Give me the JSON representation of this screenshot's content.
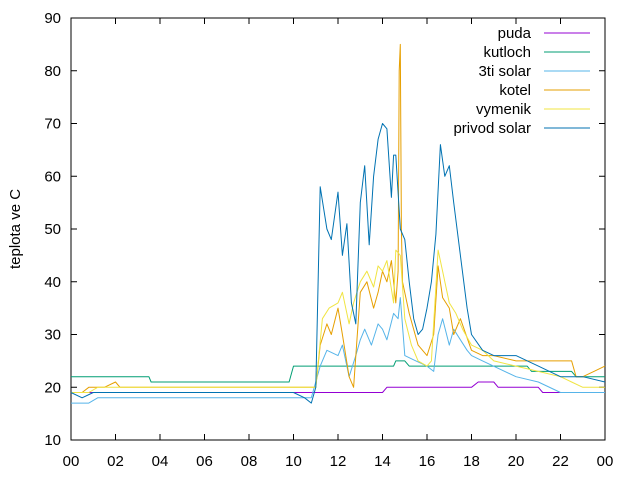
{
  "chart_data": {
    "type": "line",
    "title": "",
    "xlabel": "",
    "ylabel": "teplota ve C",
    "xlim": [
      0,
      24
    ],
    "ylim": [
      10,
      90
    ],
    "x_ticks": [
      "00",
      "02",
      "04",
      "06",
      "08",
      "10",
      "12",
      "14",
      "16",
      "18",
      "20",
      "22",
      "00"
    ],
    "y_ticks": [
      "10",
      "20",
      "30",
      "40",
      "50",
      "60",
      "70",
      "80",
      "90"
    ],
    "grid": false,
    "legend_position": "top-right",
    "series": [
      {
        "name": "puda",
        "color": "#9400d3",
        "x": [
          0,
          10.8,
          11,
          14,
          14.2,
          18,
          18.3,
          19,
          19.2,
          21,
          21.2,
          24
        ],
        "y": [
          19,
          19,
          19,
          19,
          20,
          20,
          21,
          21,
          20,
          20,
          19,
          19
        ]
      },
      {
        "name": "kutloch",
        "color": "#009e73",
        "x": [
          0,
          3.5,
          3.6,
          9.8,
          10,
          13,
          13.2,
          14.5,
          14.6,
          15,
          15.2,
          18.5,
          18.6,
          20.5,
          20.7,
          22.5,
          22.7,
          24
        ],
        "y": [
          22,
          22,
          21,
          21,
          24,
          24,
          24,
          24,
          25,
          25,
          24,
          24,
          24,
          24,
          23,
          23,
          22,
          22
        ]
      },
      {
        "name": "3ti solar",
        "color": "#56b4e9",
        "x": [
          0,
          0.8,
          1.2,
          4,
          4.2,
          9.5,
          10,
          10.8,
          11.2,
          11.5,
          12,
          12.2,
          12.5,
          12.8,
          13,
          13.2,
          13.5,
          13.8,
          14,
          14.2,
          14.5,
          14.7,
          14.8,
          15,
          15.5,
          16,
          16.3,
          16.5,
          16.7,
          17,
          17.2,
          17.5,
          17.8,
          18,
          18.5,
          20,
          21,
          22,
          22.5,
          23,
          24
        ],
        "y": [
          17,
          17,
          18,
          18,
          18,
          18,
          18,
          18,
          24,
          27,
          26,
          28,
          22,
          26,
          29,
          31,
          28,
          32,
          31,
          29,
          34,
          33,
          37,
          26,
          25,
          24,
          23,
          30,
          33,
          28,
          31,
          29,
          27,
          26,
          25,
          22,
          21,
          19,
          19,
          19,
          19
        ]
      },
      {
        "name": "kotel",
        "color": "#e69f00",
        "x": [
          0,
          0.5,
          0.8,
          1.5,
          2,
          2.2,
          3,
          3.2,
          9.5,
          10,
          10.5,
          11,
          11.2,
          11.5,
          11.7,
          12,
          12.2,
          12.5,
          12.7,
          13,
          13.3,
          13.6,
          13.8,
          14,
          14.2,
          14.4,
          14.6,
          14.7,
          14.75,
          14.8,
          14.85,
          14.9,
          15.2,
          15.6,
          16,
          16.3,
          16.5,
          16.7,
          17,
          17.2,
          17.5,
          18,
          18.5,
          19,
          20,
          21,
          22,
          22.5,
          22.7,
          23,
          23.5,
          24
        ],
        "y": [
          19,
          19,
          20,
          20,
          21,
          20,
          20,
          20,
          20,
          20,
          20,
          20,
          28,
          32,
          30,
          35,
          30,
          22,
          20,
          38,
          40,
          35,
          38,
          42,
          40,
          44,
          36,
          42,
          80,
          85,
          50,
          40,
          34,
          28,
          26,
          30,
          43,
          37,
          35,
          30,
          33,
          27,
          26,
          26,
          25,
          25,
          25,
          25,
          22,
          22,
          23,
          24
        ]
      },
      {
        "name": "vymenik",
        "color": "#f0e442",
        "x": [
          0,
          0.8,
          1.2,
          4,
          9.5,
          10.5,
          11,
          11.3,
          11.6,
          12,
          12.2,
          12.5,
          12.7,
          13,
          13.3,
          13.6,
          13.8,
          14,
          14.2,
          14.5,
          14.6,
          14.8,
          15,
          15.3,
          15.6,
          16,
          16.2,
          16.5,
          16.7,
          17,
          17.3,
          17.6,
          18,
          18.5,
          19,
          20,
          21,
          22,
          22.5,
          23,
          24
        ],
        "y": [
          19,
          19,
          20,
          20,
          20,
          20,
          20,
          33,
          35,
          36,
          38,
          32,
          36,
          40,
          42,
          39,
          43,
          42,
          44,
          36,
          46,
          45,
          33,
          28,
          25,
          24,
          25,
          46,
          42,
          36,
          34,
          31,
          28,
          27,
          25,
          24,
          23,
          22,
          21,
          20,
          20
        ]
      },
      {
        "name": "privod solar",
        "color": "#0072b2",
        "x": [
          0,
          0.5,
          1,
          4,
          9.5,
          10,
          10.5,
          10.8,
          11,
          11.2,
          11.5,
          11.7,
          12,
          12.2,
          12.4,
          12.6,
          12.8,
          13,
          13.2,
          13.4,
          13.6,
          13.8,
          14,
          14.2,
          14.4,
          14.5,
          14.6,
          14.8,
          15,
          15.2,
          15.4,
          15.6,
          15.8,
          16,
          16.2,
          16.4,
          16.6,
          16.8,
          17,
          17.2,
          17.5,
          17.8,
          18,
          18.5,
          19,
          20,
          21,
          22,
          23,
          24
        ],
        "y": [
          19,
          18,
          19,
          19,
          19,
          19,
          18,
          17,
          20,
          58,
          50,
          48,
          57,
          45,
          51,
          36,
          32,
          55,
          62,
          47,
          60,
          67,
          70,
          69,
          56,
          64,
          64,
          50,
          48,
          40,
          33,
          30,
          31,
          35,
          40,
          49,
          66,
          60,
          62,
          55,
          45,
          35,
          30,
          27,
          26,
          26,
          24,
          22,
          22,
          21
        ]
      }
    ]
  }
}
